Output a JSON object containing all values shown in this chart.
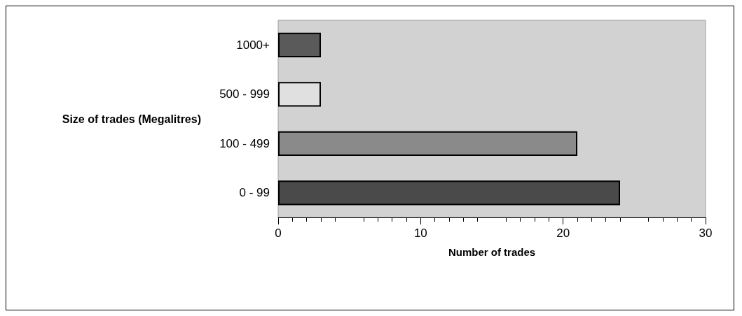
{
  "chart_data": {
    "type": "bar",
    "orientation": "horizontal",
    "categories": [
      "1000+",
      "500 - 999",
      "100 - 499",
      "0 - 99"
    ],
    "values": [
      3,
      3,
      21,
      24
    ],
    "colors": [
      "#5a5a5a",
      "#e0e0e0",
      "#8a8a8a",
      "#4a4a4a"
    ],
    "xlim": [
      0,
      30
    ],
    "xticks": [
      0,
      10,
      20,
      30
    ],
    "xlabel": "Number of trades",
    "ylabel": "Size of trades (Megalitres)",
    "grid": false
  }
}
